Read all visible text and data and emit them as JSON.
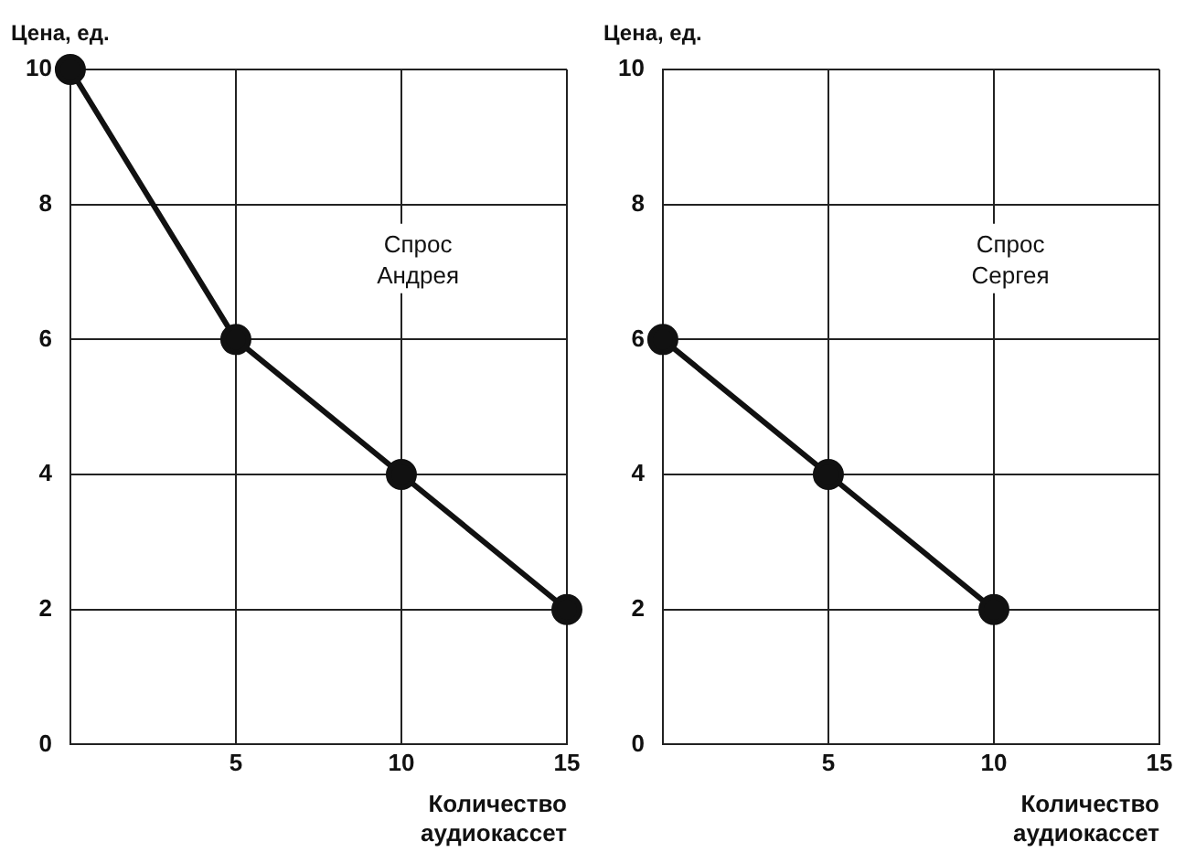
{
  "chart_data": [
    {
      "type": "line",
      "ylabel": "Цена, ед.",
      "xlabel": "Количество аудиокассет",
      "x": [
        0,
        5,
        10,
        15
      ],
      "values": [
        10,
        6,
        4,
        2
      ],
      "color": "#111111",
      "xlim": [
        0,
        15
      ],
      "xticks": [
        5,
        10,
        15
      ],
      "ylim": [
        0,
        10
      ],
      "yticks": [
        0,
        2,
        4,
        6,
        8,
        10
      ],
      "grid": true,
      "marker": "circle",
      "line_style": "solid",
      "annotations": [
        "Спрос Андрея"
      ]
    },
    {
      "type": "line",
      "ylabel": "Цена, ед.",
      "xlabel": "Количество аудиокассет",
      "x": [
        0,
        5,
        10
      ],
      "values": [
        6,
        4,
        2
      ],
      "color": "#111111",
      "xlim": [
        0,
        15
      ],
      "xticks": [
        5,
        10,
        15
      ],
      "ylim": [
        0,
        10
      ],
      "yticks": [
        0,
        2,
        4,
        6,
        8,
        10
      ],
      "grid": true,
      "marker": "circle",
      "line_style": "solid",
      "annotations": [
        "Спрос Сергея"
      ]
    }
  ]
}
